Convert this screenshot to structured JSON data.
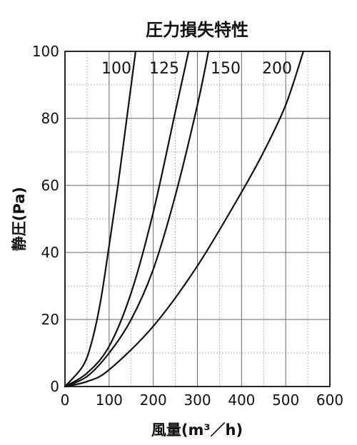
{
  "chart_data": {
    "type": "line",
    "title": "圧力損失特性",
    "xlabel": "風量(m³／h)",
    "ylabel": "静圧(Pa)",
    "xlim": [
      0,
      600
    ],
    "ylim": [
      0,
      100
    ],
    "x_ticks": [
      "0",
      "100",
      "200",
      "300",
      "400",
      "500",
      "600"
    ],
    "y_ticks": [
      "0",
      "20",
      "40",
      "60",
      "80",
      "100"
    ],
    "grid": true,
    "series": [
      {
        "name": "100",
        "x": [
          0,
          40,
          60,
          80,
          100,
          120,
          140,
          160
        ],
        "y": [
          0,
          6,
          13,
          25,
          42,
          60,
          80,
          100
        ]
      },
      {
        "name": "125",
        "x": [
          0,
          50,
          100,
          150,
          200,
          250,
          280
        ],
        "y": [
          0,
          4,
          12,
          28,
          52,
          82,
          100
        ]
      },
      {
        "name": "150",
        "x": [
          0,
          50,
          100,
          150,
          200,
          250,
          300,
          325
        ],
        "y": [
          0,
          3,
          10,
          20,
          35,
          57,
          84,
          100
        ]
      },
      {
        "name": "200",
        "x": [
          0,
          50,
          100,
          200,
          300,
          400,
          450,
          500,
          540
        ],
        "y": [
          0,
          1.5,
          5,
          18,
          36,
          58,
          70,
          84,
          100
        ]
      }
    ]
  }
}
